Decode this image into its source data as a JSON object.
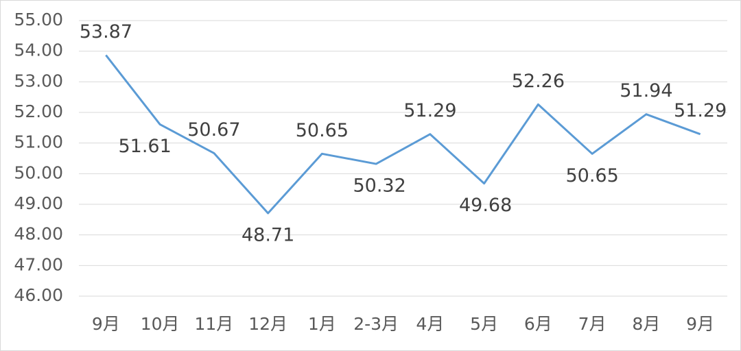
{
  "chart_data": {
    "type": "line",
    "categories": [
      "9月",
      "10月",
      "11月",
      "12月",
      "1月",
      "2-3月",
      "4月",
      "5月",
      "6月",
      "7月",
      "8月",
      "9月"
    ],
    "values": [
      53.87,
      51.61,
      50.67,
      48.71,
      50.65,
      50.32,
      51.29,
      49.68,
      52.26,
      50.65,
      51.94,
      51.29
    ],
    "color": "#5b9bd5",
    "ylim": [
      46,
      55
    ],
    "yticks": [
      {
        "value": 46,
        "label": "46.00"
      },
      {
        "value": 47,
        "label": "47.00"
      },
      {
        "value": 48,
        "label": "48.00"
      },
      {
        "value": 49,
        "label": "49.00"
      },
      {
        "value": 50,
        "label": "50.00"
      },
      {
        "value": 51,
        "label": "51.00"
      },
      {
        "value": 52,
        "label": "52.00"
      },
      {
        "value": 53,
        "label": "53.00"
      },
      {
        "value": 54,
        "label": "54.00"
      },
      {
        "value": 55,
        "label": "55.00"
      }
    ],
    "grid": true
  }
}
